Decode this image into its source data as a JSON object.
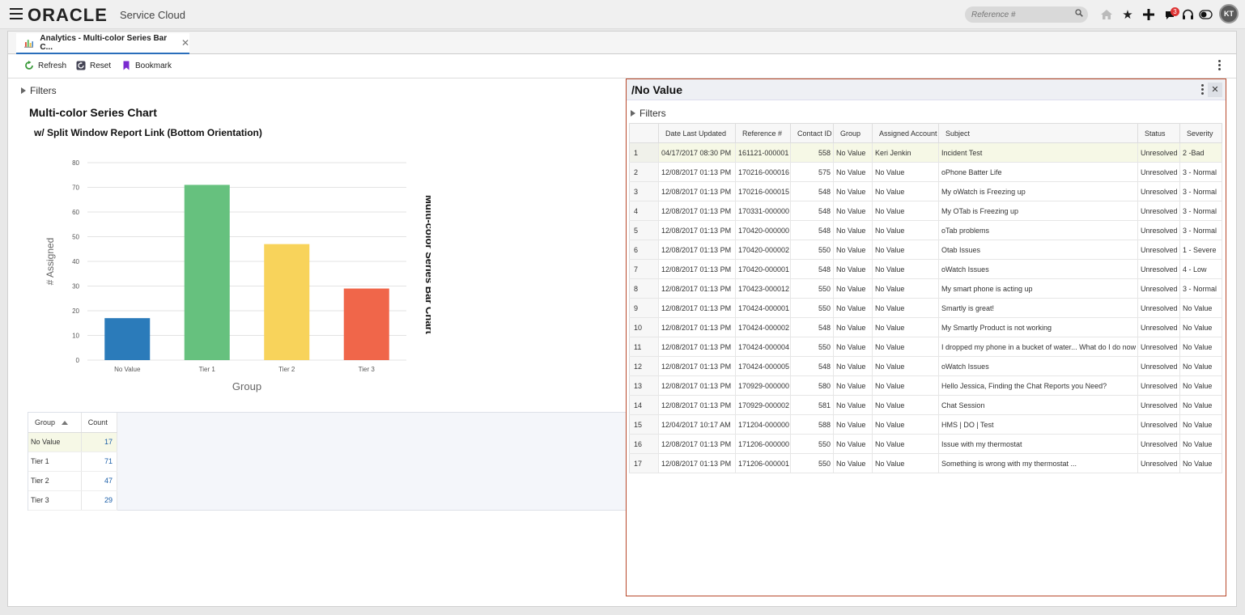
{
  "header": {
    "logo": "ORACLE",
    "product": "Service Cloud",
    "search_placeholder": "Reference #",
    "notification_count": "3",
    "user_initials": "KT",
    "icons": [
      "menu-icon",
      "search-icon",
      "home-icon",
      "star-icon",
      "plus-icon",
      "notification-icon",
      "headset-icon",
      "toggle-icon"
    ]
  },
  "tab": {
    "label": "Analytics - Multi-color Series Bar C...",
    "icon": "bar-chart-icon"
  },
  "toolbar": {
    "refresh": "Refresh",
    "reset": "Reset",
    "bookmark": "Bookmark"
  },
  "left": {
    "filters_label": "Filters",
    "title": "Multi-color Series Chart",
    "subtitle": "w/ Split Window Report Link (Bottom Orientation)"
  },
  "chart_data": {
    "type": "bar",
    "title": "Multi-color Series Bar Chart",
    "categories": [
      "No Value",
      "Tier 1",
      "Tier 2",
      "Tier 3"
    ],
    "values": [
      17,
      71,
      47,
      29
    ],
    "colors": [
      "#2b7bba",
      "#66c17e",
      "#f8d35b",
      "#f0664a"
    ],
    "xlabel": "Group",
    "ylabel": "# Assigned",
    "ylim": [
      0,
      80
    ],
    "yticks": [
      0,
      10,
      20,
      30,
      40,
      50,
      60,
      70,
      80
    ],
    "grid": true,
    "legend": "none"
  },
  "count_table": {
    "headers": [
      "Group",
      "Count"
    ],
    "rows": [
      [
        "No Value",
        "17"
      ],
      [
        "Tier 1",
        "71"
      ],
      [
        "Tier 2",
        "47"
      ],
      [
        "Tier 3",
        "29"
      ]
    ]
  },
  "right": {
    "title": "/No Value",
    "filters_label": "Filters",
    "columns": [
      "Date Last Updated",
      "Reference #",
      "Contact ID",
      "Group",
      "Assigned Account",
      "Subject",
      "Status",
      "Severity"
    ],
    "rows": [
      [
        "1",
        "04/17/2017 08:30 PM",
        "161121-000001",
        "558",
        "No Value",
        "Keri Jenkin",
        "Incident Test",
        "Unresolved",
        "2 -Bad"
      ],
      [
        "2",
        "12/08/2017 01:13 PM",
        "170216-000016",
        "575",
        "No Value",
        "No Value",
        "oPhone Batter Life",
        "Unresolved",
        "3 - Normal"
      ],
      [
        "3",
        "12/08/2017 01:13 PM",
        "170216-000015",
        "548",
        "No Value",
        "No Value",
        "My oWatch is Freezing up",
        "Unresolved",
        "3 - Normal"
      ],
      [
        "4",
        "12/08/2017 01:13 PM",
        "170331-000000",
        "548",
        "No Value",
        "No Value",
        "My OTab is Freezing up",
        "Unresolved",
        "3 - Normal"
      ],
      [
        "5",
        "12/08/2017 01:13 PM",
        "170420-000000",
        "548",
        "No Value",
        "No Value",
        "oTab problems",
        "Unresolved",
        "3 - Normal"
      ],
      [
        "6",
        "12/08/2017 01:13 PM",
        "170420-000002",
        "550",
        "No Value",
        "No Value",
        "Otab Issues",
        "Unresolved",
        "1 - Severe"
      ],
      [
        "7",
        "12/08/2017 01:13 PM",
        "170420-000001",
        "548",
        "No Value",
        "No Value",
        "oWatch Issues",
        "Unresolved",
        "4 - Low"
      ],
      [
        "8",
        "12/08/2017 01:13 PM",
        "170423-000012",
        "550",
        "No Value",
        "No Value",
        "My smart phone is acting up",
        "Unresolved",
        "3 - Normal"
      ],
      [
        "9",
        "12/08/2017 01:13 PM",
        "170424-000001",
        "550",
        "No Value",
        "No Value",
        "Smartly is great!",
        "Unresolved",
        "No Value"
      ],
      [
        "10",
        "12/08/2017 01:13 PM",
        "170424-000002",
        "548",
        "No Value",
        "No Value",
        "My Smartly Product is not working",
        "Unresolved",
        "No Value"
      ],
      [
        "11",
        "12/08/2017 01:13 PM",
        "170424-000004",
        "550",
        "No Value",
        "No Value",
        "I dropped my phone in a bucket of water... What do I do now",
        "Unresolved",
        "No Value"
      ],
      [
        "12",
        "12/08/2017 01:13 PM",
        "170424-000005",
        "548",
        "No Value",
        "No Value",
        "oWatch Issues",
        "Unresolved",
        "No Value"
      ],
      [
        "13",
        "12/08/2017 01:13 PM",
        "170929-000000",
        "580",
        "No Value",
        "No Value",
        "Hello Jessica, Finding the Chat Reports you Need?",
        "Unresolved",
        "No Value"
      ],
      [
        "14",
        "12/08/2017 01:13 PM",
        "170929-000002",
        "581",
        "No Value",
        "No Value",
        "Chat Session",
        "Unresolved",
        "No Value"
      ],
      [
        "15",
        "12/04/2017 10:17 AM",
        "171204-000000",
        "588",
        "No Value",
        "No Value",
        "HMS | DO | Test",
        "Unresolved",
        "No Value"
      ],
      [
        "16",
        "12/08/2017 01:13 PM",
        "171206-000000",
        "550",
        "No Value",
        "No Value",
        "Issue with my thermostat",
        "Unresolved",
        "No Value"
      ],
      [
        "17",
        "12/08/2017 01:13 PM",
        "171206-000001",
        "550",
        "No Value",
        "No Value",
        "Something is wrong with my thermostat ...",
        "Unresolved",
        "No Value"
      ]
    ]
  }
}
